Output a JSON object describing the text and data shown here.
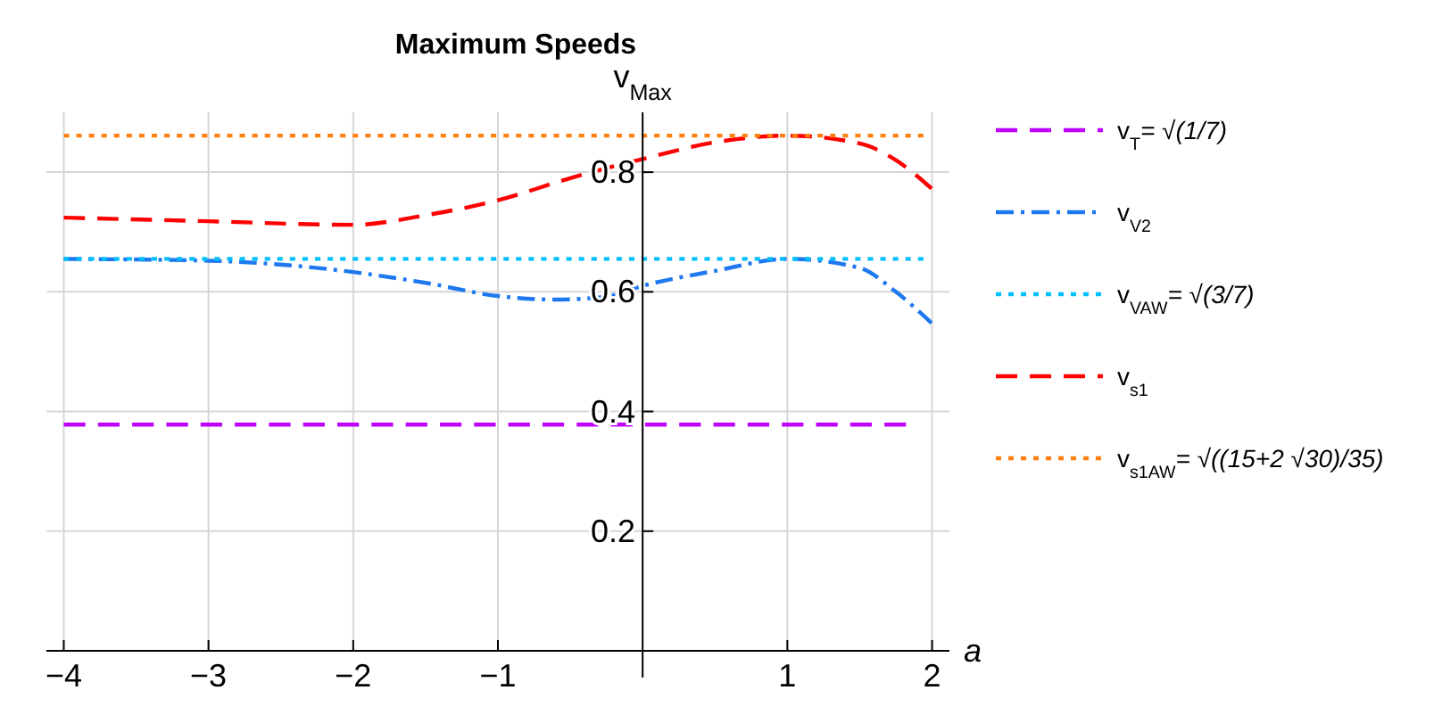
{
  "chart_data": {
    "type": "line",
    "title": "Maximum Speeds",
    "xlabel": "a",
    "ylabel": "v$_{Max}$",
    "xlim": [
      -4.12,
      2.12
    ],
    "ylim": [
      0,
      0.9
    ],
    "xticks": [
      -4,
      -3,
      -2,
      -1,
      1,
      2
    ],
    "yticks": [
      0.2,
      0.4,
      0.6,
      0.8
    ],
    "grid": true,
    "legend": "right",
    "marker": "none",
    "series": [
      {
        "name": "v$_{T}$= √(1/7)",
        "color": "#bf00ff",
        "line_style": "dashed",
        "x": [
          -4,
          1.82
        ],
        "values": [
          0.378,
          0.378
        ]
      },
      {
        "name": "v$_{V2}$",
        "color": "#1e78f0",
        "line_style": "dashdot",
        "x": [
          -4,
          -3,
          -2,
          -1.5,
          -1,
          -0.6,
          -0.25,
          0,
          0.5,
          1,
          1.5,
          1.75,
          2
        ],
        "values": [
          0.655,
          0.652,
          0.633,
          0.615,
          0.593,
          0.587,
          0.592,
          0.61,
          0.635,
          0.655,
          0.64,
          0.6,
          0.547
        ]
      },
      {
        "name": "v$_{VAW}$= √(3/7)",
        "color": "#00bfff",
        "line_style": "dotted",
        "x": [
          -4,
          1.94
        ],
        "values": [
          0.655,
          0.655
        ]
      },
      {
        "name": "v$_{s1}$",
        "color": "#ff0000",
        "line_style": "dashed",
        "x": [
          -4,
          -3,
          -2,
          -1.5,
          -1,
          -0.5,
          0,
          0.5,
          1,
          1.5,
          1.75,
          2
        ],
        "values": [
          0.724,
          0.718,
          0.712,
          0.728,
          0.753,
          0.79,
          0.822,
          0.85,
          0.861,
          0.848,
          0.82,
          0.772
        ]
      },
      {
        "name": "v$_{s1AW}$= √((15+2 √30)/35)",
        "color": "#ff7f0e",
        "line_style": "dotted",
        "x": [
          -4,
          1.94
        ],
        "values": [
          0.861,
          0.861
        ]
      }
    ]
  }
}
